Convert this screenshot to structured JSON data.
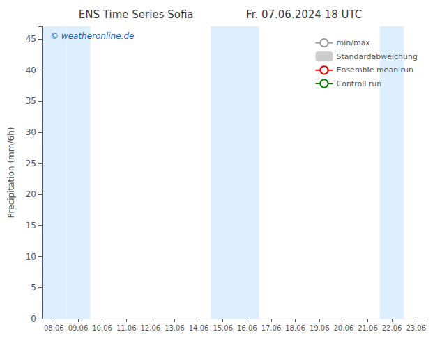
{
  "chart_data": {
    "type": "line",
    "title": "ENS Time Series Sofia",
    "subtitle": "Fr. 07.06.2024 18 UTC",
    "ylabel": "Precipitation (mm/6h)",
    "categories": [
      "08.06",
      "09.06",
      "10.06",
      "11.06",
      "12.06",
      "13.06",
      "14.06",
      "15.06",
      "16.06",
      "17.06",
      "18.06",
      "19.06",
      "20.06",
      "21.06",
      "22.06",
      "23.06"
    ],
    "series": [
      {
        "name": "min/max",
        "type": "line",
        "color": "#999999",
        "values": [
          null,
          null,
          null,
          null,
          null,
          null,
          null,
          null,
          null,
          null,
          null,
          null,
          null,
          null,
          null,
          null
        ]
      },
      {
        "name": "Standardabweichung",
        "type": "bar",
        "color": "#cccccc",
        "values": [
          null,
          null,
          null,
          null,
          null,
          null,
          null,
          null,
          null,
          null,
          null,
          null,
          null,
          null,
          null,
          null
        ]
      },
      {
        "name": "Ensemble mean run",
        "type": "line",
        "color": "#dd0000",
        "values": [
          null,
          null,
          null,
          null,
          null,
          null,
          null,
          null,
          null,
          null,
          null,
          null,
          null,
          null,
          null,
          null
        ]
      },
      {
        "name": "Controll run",
        "type": "line",
        "color": "#007700",
        "values": [
          null,
          null,
          null,
          null,
          null,
          null,
          null,
          null,
          null,
          null,
          null,
          null,
          null,
          null,
          null,
          null
        ]
      }
    ],
    "shaded_bands": {
      "categories": [
        "08.06",
        "09.06",
        "15.06",
        "16.06",
        "22.06"
      ],
      "color": "#ddeeff"
    },
    "annotations": [
      {
        "text": "© weatheronline.de",
        "color": "#1a5fb4"
      }
    ],
    "ylim": [
      0,
      47
    ],
    "yticks": [
      0,
      5,
      10,
      15,
      20,
      25,
      30,
      35,
      40,
      45
    ],
    "grid": false,
    "legend": "upper right"
  }
}
